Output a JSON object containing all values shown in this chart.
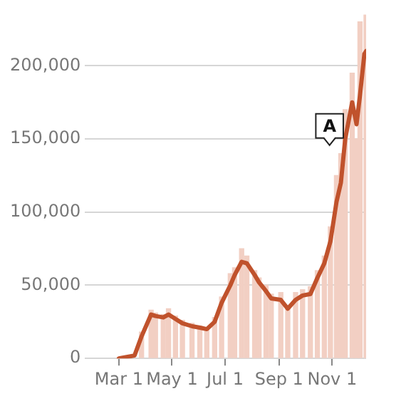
{
  "chart_data": {
    "type": "bar",
    "x": [
      "--03-01",
      "--03-19",
      "--03-27",
      "--04-07",
      "--04-12",
      "--04-21",
      "--04-27",
      "--05-05",
      "--05-13",
      "--05-24",
      "--06-02",
      "--06-10",
      "--06-19",
      "--06-27",
      "--07-07",
      "--07-12",
      "--07-20",
      "--07-26",
      "--08-04",
      "--08-09",
      "--08-17",
      "--08-23",
      "--09-03",
      "--09-11",
      "--09-20",
      "--09-28",
      "--10-07",
      "--10-15",
      "--10-23",
      "--10-30",
      "--11-06",
      "--11-11",
      "--11-16",
      "--11-24",
      "--11-29",
      "--12-03",
      "--12-08",
      "--12-10"
    ],
    "series": [
      {
        "color": "#f2cfc3",
        "values": [
          0,
          null,
          18000,
          33000,
          31000,
          30000,
          34000,
          29000,
          26000,
          24000,
          22000,
          21000,
          28000,
          42000,
          58000,
          62000,
          75000,
          70000,
          60000,
          55000,
          50000,
          44000,
          45000,
          36000,
          45000,
          47000,
          49000,
          60000,
          70000,
          90000,
          125000,
          140000,
          170000,
          195000,
          150000,
          230000,
          null,
          235000
        ]
      },
      {
        "type": "line",
        "color": "#c0522c",
        "values": [
          0,
          2000,
          15000,
          30000,
          29000,
          28000,
          30000,
          27000,
          24000,
          22000,
          21000,
          20000,
          25000,
          38000,
          50000,
          57000,
          66000,
          65000,
          57000,
          52000,
          46000,
          41000,
          40000,
          34000,
          40000,
          43000,
          44000,
          55000,
          65000,
          80000,
          107000,
          120000,
          150000,
          175000,
          160000,
          180000,
          208000,
          210000
        ]
      }
    ],
    "xlim": [
      "--01-22",
      "--12-10"
    ],
    "xticks": [
      {
        "value": "--03-01",
        "label": "Mar 1"
      },
      {
        "value": "--05-01",
        "label": "May 1"
      },
      {
        "value": "--07-01",
        "label": "Jul 1"
      },
      {
        "value": "--09-01",
        "label": "Sep 1"
      },
      {
        "value": "--11-01",
        "label": "Nov 1"
      }
    ],
    "ylim": [
      0,
      235000
    ],
    "yticks": [
      {
        "value": 0,
        "label": "0"
      },
      {
        "value": 50000,
        "label": "50,000"
      },
      {
        "value": 100000,
        "label": "100,000"
      },
      {
        "value": 150000,
        "label": "150,000"
      },
      {
        "value": 200000,
        "label": "200,000"
      }
    ],
    "grid": "y",
    "annotations": [
      "A"
    ]
  }
}
